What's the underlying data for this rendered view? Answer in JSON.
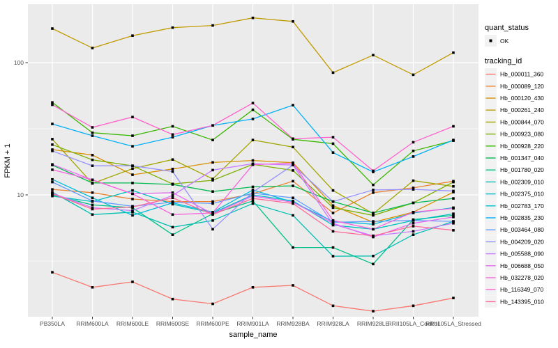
{
  "figure": {
    "y_axis_title": "FPKM + 1",
    "x_axis_title": "sample_name",
    "legend": {
      "quant_status_title": "quant_status",
      "quant_status_items": [
        "OK"
      ],
      "tracking_title": "tracking_id"
    },
    "colors": {
      "panel_bg": "#EBEBEB",
      "grid": "#FFFFFF",
      "axis_text": "#4D4D4D",
      "point": "#000000",
      "legend_key_bg": "#F2F2F2",
      "tick": "#333333"
    }
  },
  "chart_data": {
    "type": "line",
    "title": "",
    "xlabel": "sample_name",
    "ylabel": "FPKM + 1",
    "y_scale": "log10",
    "y_tick_values": [
      100,
      10
    ],
    "y_minor_values": [
      31.6,
      3.16
    ],
    "ylim": [
      1.2,
      276
    ],
    "grid": true,
    "legend_position": "right",
    "point_marker": "filled-black-square",
    "quant_status": "OK",
    "x_categories": [
      "PB350LA",
      "RRIM600LA",
      "RRIM600LE",
      "RRIM600SE",
      "RRIM600PE",
      "RRIM901LA",
      "RRIM928BA",
      "RRIM928LA",
      "RRIM928LE",
      "RRII105LA_Control",
      "RRII105LA_Stressed"
    ],
    "series": [
      {
        "tracking_id": "Hb_000011_360",
        "color": "#F8766D",
        "values": [
          2.6,
          2.0,
          2.2,
          1.63,
          1.5,
          2.0,
          2.07,
          1.45,
          1.32,
          1.45,
          1.66
        ]
      },
      {
        "tracking_id": "Hb_000089_120",
        "color": "#EA8331",
        "values": [
          11.0,
          10.4,
          9.3,
          8.9,
          8.9,
          10.2,
          12.7,
          7.3,
          10.4,
          11.3,
          12.7
        ]
      },
      {
        "tracking_id": "Hb_000120_430",
        "color": "#D89000",
        "values": [
          22,
          20,
          14.2,
          15.7,
          17.6,
          18.2,
          17.5,
          8.3,
          6.2,
          7.4,
          10.5
        ]
      },
      {
        "tracking_id": "Hb_000261_240",
        "color": "#C09B00",
        "values": [
          181,
          129,
          160,
          184,
          191,
          218,
          205,
          84,
          114,
          81,
          119
        ]
      },
      {
        "tracking_id": "Hb_000844_070",
        "color": "#A3A500",
        "values": [
          26.4,
          12.2,
          15.8,
          18.5,
          13.2,
          26,
          23,
          10.8,
          7.2,
          12.8,
          11.6
        ]
      },
      {
        "tracking_id": "Hb_000923_080",
        "color": "#7CAE00",
        "values": [
          24,
          18.4,
          16.6,
          12.1,
          12.9,
          17,
          15.3,
          8.0,
          7.0,
          8.7,
          12.5
        ]
      },
      {
        "tracking_id": "Hb_000928_220",
        "color": "#39B600",
        "values": [
          50,
          29.5,
          28,
          33,
          26,
          44,
          26.3,
          24.4,
          11.9,
          21.5,
          25.7
        ]
      },
      {
        "tracking_id": "Hb_001347_040",
        "color": "#00BB4E",
        "values": [
          16.8,
          12.3,
          12.3,
          12.0,
          10.6,
          11.5,
          11.7,
          8.9,
          7.3,
          8.7,
          9.4
        ]
      },
      {
        "tracking_id": "Hb_001780_020",
        "color": "#00C087",
        "values": [
          10.0,
          8.4,
          8.0,
          5.0,
          7.2,
          9.0,
          4.0,
          4.0,
          3.0,
          6.5,
          7.0
        ]
      },
      {
        "tracking_id": "Hb_002309_010",
        "color": "#00C0B2",
        "values": [
          10.5,
          7.1,
          7.4,
          5.7,
          6.4,
          8.6,
          7.0,
          3.44,
          3.45,
          5.0,
          6.3
        ]
      },
      {
        "tracking_id": "Hb_002375_010",
        "color": "#00BFC4",
        "values": [
          9.8,
          8.9,
          10.8,
          8.5,
          7.3,
          10.0,
          9.0,
          5.9,
          5.5,
          6.4,
          7.2
        ]
      },
      {
        "tracking_id": "Hb_002783_170",
        "color": "#00BCD8",
        "values": [
          13.1,
          9.5,
          7.0,
          8.7,
          7.4,
          10.9,
          8.8,
          6.3,
          6.0,
          7.3,
          8.0
        ]
      },
      {
        "tracking_id": "Hb_002835_230",
        "color": "#00B0F6",
        "values": [
          34.4,
          28,
          23.3,
          27.3,
          33.5,
          37.5,
          47.7,
          20.9,
          14.9,
          19.5,
          26
        ]
      },
      {
        "tracking_id": "Hb_003464_080",
        "color": "#619CFF",
        "values": [
          12.5,
          9.0,
          8.2,
          8.8,
          8.6,
          10.3,
          9.5,
          6.2,
          6.3,
          6.4,
          6.3
        ]
      },
      {
        "tracking_id": "Hb_004209_020",
        "color": "#9590FF",
        "values": [
          21.5,
          16.6,
          16.6,
          15.0,
          5.5,
          10.5,
          16.8,
          8.9,
          10.9,
          11.0,
          10.7
        ]
      },
      {
        "tracking_id": "Hb_005588_090",
        "color": "#C77CFF",
        "values": [
          10.3,
          8.0,
          7.6,
          9.9,
          15.4,
          17.2,
          16.8,
          6.0,
          4.9,
          5.3,
          6.1
        ]
      },
      {
        "tracking_id": "Hb_006688_050",
        "color": "#E76BF3",
        "values": [
          17,
          13,
          10.2,
          10.4,
          7.2,
          9.8,
          8.8,
          6.1,
          4.8,
          6.1,
          6.8
        ]
      },
      {
        "tracking_id": "Hb_032278_020",
        "color": "#F763E0",
        "values": [
          15.5,
          13,
          10.2,
          7.1,
          7.3,
          16.9,
          17.4,
          6.4,
          5.5,
          7.4,
          7.9
        ]
      },
      {
        "tracking_id": "Hb_116349_070",
        "color": "#FF61CC",
        "values": [
          48,
          32.4,
          38.8,
          28.6,
          33.5,
          49.5,
          26.6,
          27.3,
          15.2,
          25,
          33
        ]
      },
      {
        "tracking_id": "Hb_143395_010",
        "color": "#FF6A98",
        "values": [
          10.2,
          7.8,
          8.1,
          9.5,
          7.1,
          9.4,
          8.6,
          5.3,
          4.9,
          5.8,
          5.4
        ]
      }
    ]
  }
}
